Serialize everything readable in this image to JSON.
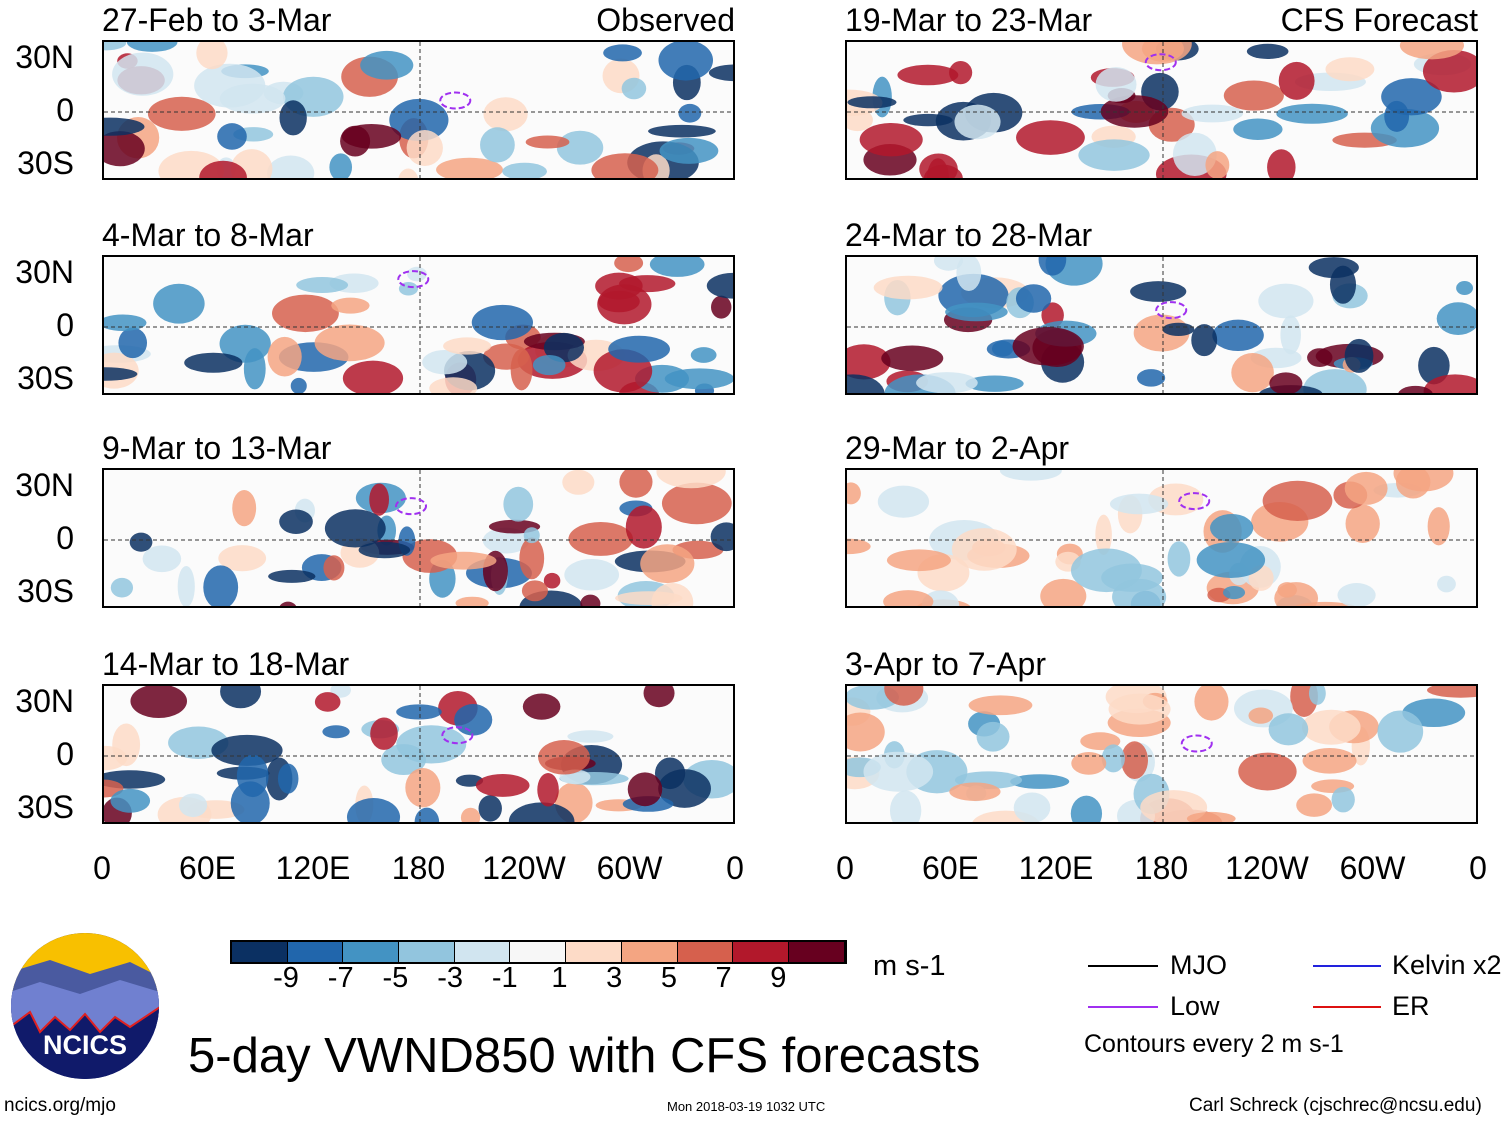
{
  "chart_data": {
    "type": "heatmap",
    "title": "5-day VWND850 with CFS forecasts",
    "variable": "VWND850",
    "units": "m s-1",
    "x_ticks": [
      "0",
      "60E",
      "120E",
      "180",
      "120W",
      "60W",
      "0"
    ],
    "y_ticks": [
      "30N",
      "0",
      "30S"
    ],
    "panels": [
      {
        "title": "27-Feb to 3-Mar",
        "tag": "Observed",
        "type": "observed"
      },
      {
        "title": "4-Mar to 8-Mar",
        "tag": "",
        "type": "observed"
      },
      {
        "title": "9-Mar to 13-Mar",
        "tag": "",
        "type": "observed"
      },
      {
        "title": "14-Mar to 18-Mar",
        "tag": "",
        "type": "observed"
      },
      {
        "title": "19-Mar to 23-Mar",
        "tag": "CFS Forecast",
        "type": "forecast"
      },
      {
        "title": "24-Mar to 28-Mar",
        "tag": "",
        "type": "forecast"
      },
      {
        "title": "29-Mar to 2-Apr",
        "tag": "",
        "type": "forecast"
      },
      {
        "title": "3-Apr to 7-Apr",
        "tag": "",
        "type": "forecast"
      }
    ],
    "colorbar": {
      "labels": [
        "-9",
        "-7",
        "-5",
        "-3",
        "-1",
        "1",
        "3",
        "5",
        "7",
        "9"
      ],
      "colors": [
        "#0b3062",
        "#2166ac",
        "#4393c3",
        "#92c5de",
        "#d1e5f0",
        "#f7f7f7",
        "#fddbc7",
        "#f4a582",
        "#d6604d",
        "#b2182b",
        "#67001f"
      ]
    },
    "legend": [
      {
        "label": "MJO",
        "color": "#000000"
      },
      {
        "label": "Kelvin x2",
        "color": "#2222dd"
      },
      {
        "label": "Low",
        "color": "#a030f0"
      },
      {
        "label": "ER",
        "color": "#dd1111"
      }
    ],
    "contour_note": "Contours every 2 m s-1"
  },
  "logo_text": "NCICS",
  "footer": {
    "url": "ncics.org/mjo",
    "timestamp": "Mon 2018-03-19 1032 UTC",
    "author": "Carl Schreck (cjschrec@ncsu.edu)"
  }
}
